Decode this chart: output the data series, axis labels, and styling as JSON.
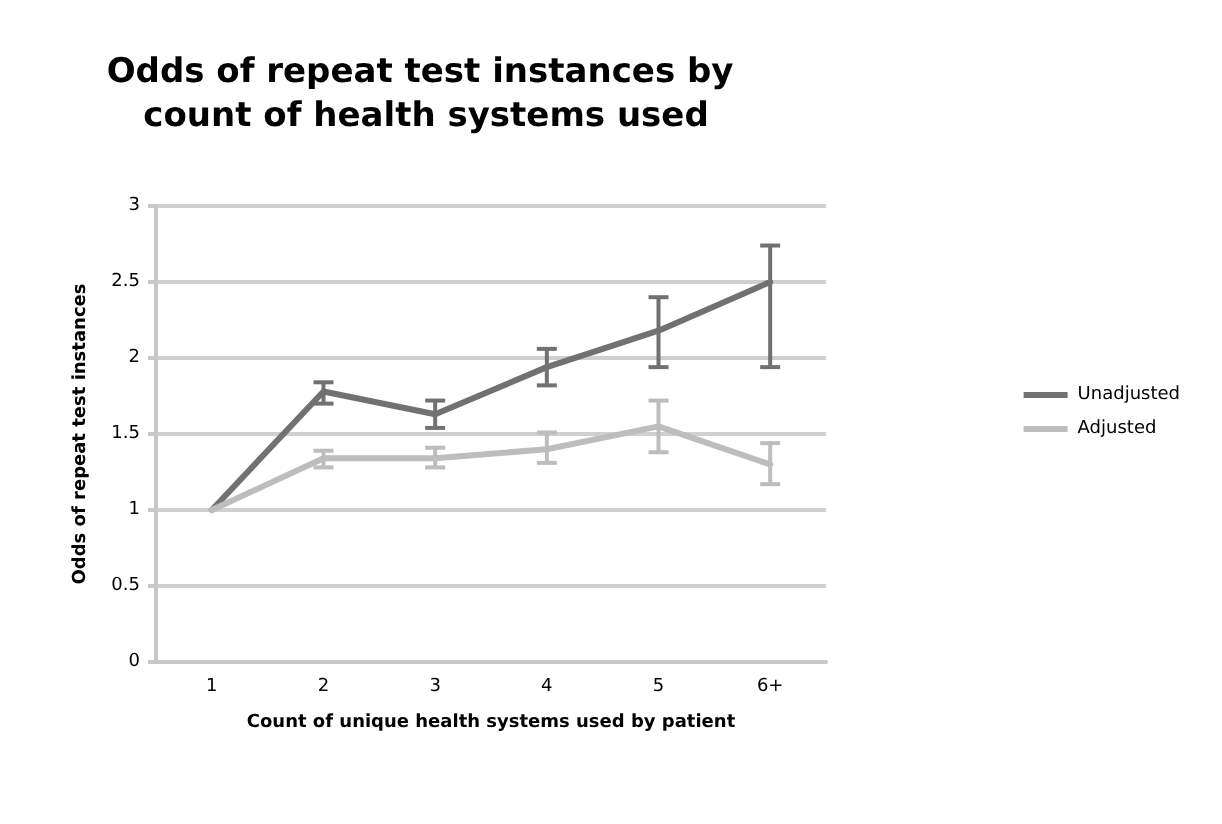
{
  "chart_data": {
    "type": "line",
    "title": "Odds of repeat test instances by count of health systems used",
    "xlabel": "Count of unique health systems used by patient",
    "ylabel": "Odds of repeat test instances",
    "categories": [
      "1",
      "2",
      "3",
      "4",
      "5",
      "6+"
    ],
    "series": [
      {
        "name": "Unadjusted",
        "color": "#717171",
        "values": [
          1,
          1.78,
          1.63,
          1.94,
          2.18,
          2.5
        ],
        "errors": [
          null,
          [
            1.7,
            1.84
          ],
          [
            1.54,
            1.72
          ],
          [
            1.82,
            2.06
          ],
          [
            1.94,
            2.4
          ],
          [
            1.94,
            2.74
          ]
        ]
      },
      {
        "name": "Adjusted",
        "color": "#bdbdbd",
        "values": [
          1,
          1.34,
          1.34,
          1.4,
          1.55,
          1.3
        ],
        "errors": [
          null,
          [
            1.28,
            1.39
          ],
          [
            1.28,
            1.41
          ],
          [
            1.31,
            1.51
          ],
          [
            1.38,
            1.72
          ],
          [
            1.17,
            1.44
          ]
        ]
      }
    ],
    "ylim": [
      0,
      3
    ],
    "yticks": [
      0,
      0.5,
      1,
      1.5,
      2,
      2.5,
      3
    ],
    "grid": "y",
    "legend": "right",
    "marker": "none",
    "line_style": "solid"
  }
}
